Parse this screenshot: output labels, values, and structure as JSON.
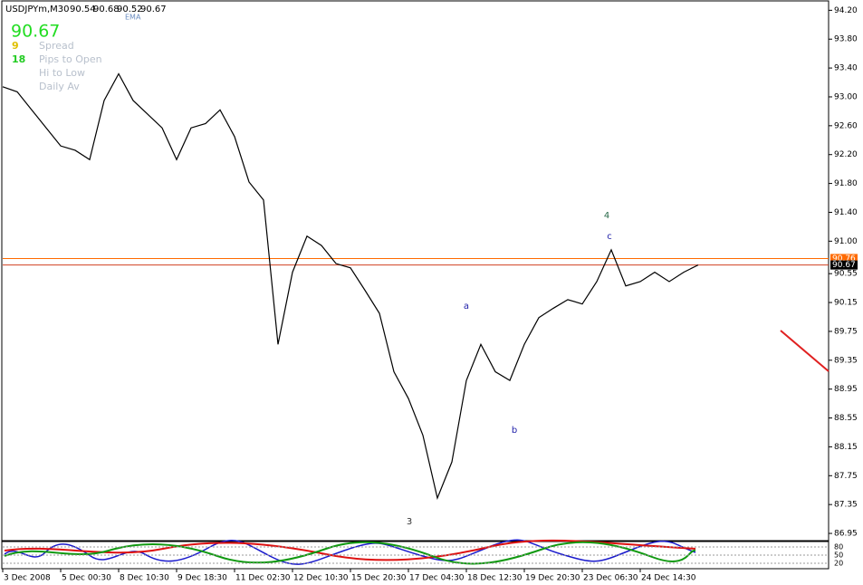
{
  "chart_data": {
    "type": "line",
    "symbol": "USDJPYm,M30",
    "ohlc": [
      90.54,
      90.68,
      90.52,
      90.67
    ],
    "indicator_name": "EMA",
    "info": {
      "price": 90.67,
      "spread": 9,
      "spread_label": "Spread",
      "pips_to_open": 18,
      "pips_to_open_label": "Pips to Open",
      "hi_to_low_label": "Hi to Low",
      "daily_av_label": "Daily Av"
    },
    "categories": [
      "3 Dec 2008",
      null,
      null,
      null,
      "5 Dec 00:30",
      null,
      null,
      null,
      "8 Dec 10:30",
      null,
      null,
      null,
      "9 Dec 18:30",
      null,
      null,
      null,
      "11 Dec 02:30",
      null,
      null,
      null,
      "12 Dec 10:30",
      null,
      null,
      null,
      "15 Dec 20:30",
      null,
      null,
      null,
      "17 Dec 04:30",
      null,
      null,
      null,
      "18 Dec 12:30",
      null,
      null,
      null,
      "19 Dec 20:30",
      null,
      null,
      null,
      "23 Dec 06:30",
      null,
      null,
      null,
      "24 Dec 14:30",
      null,
      null,
      null,
      null
    ],
    "values": [
      93.14,
      93.07,
      92.82,
      92.57,
      92.32,
      92.26,
      92.13,
      92.95,
      93.32,
      92.95,
      92.76,
      92.57,
      92.13,
      92.57,
      92.63,
      92.82,
      92.45,
      91.82,
      91.57,
      89.57,
      90.57,
      91.07,
      90.94,
      90.69,
      90.63,
      90.32,
      90.0,
      89.19,
      88.82,
      88.31,
      87.44,
      87.94,
      89.07,
      89.57,
      89.19,
      89.07,
      89.57,
      89.94,
      90.07,
      90.19,
      90.13,
      90.44,
      90.88,
      90.38,
      90.44,
      90.57,
      90.44,
      90.57,
      90.67
    ],
    "color": "#000000",
    "ylim": [
      86.85,
      94.33
    ],
    "yticks": [
      {
        "value": 94.2,
        "label": "94.20"
      },
      {
        "value": 93.8,
        "label": "93.80"
      },
      {
        "value": 93.4,
        "label": "93.40"
      },
      {
        "value": 93.0,
        "label": "93.00"
      },
      {
        "value": 92.6,
        "label": "92.60"
      },
      {
        "value": 92.2,
        "label": "92.20"
      },
      {
        "value": 91.8,
        "label": "91.80"
      },
      {
        "value": 91.4,
        "label": "91.40"
      },
      {
        "value": 91.0,
        "label": "91.00"
      },
      90.55,
      90.15,
      89.75,
      89.35,
      88.95,
      88.55,
      88.15,
      87.75,
      87.35,
      86.95
    ],
    "levels": [
      90.76,
      90.67
    ],
    "level_colors": [
      "#ff6a00",
      "#d04020"
    ],
    "annotations": [
      "4",
      "c",
      "a",
      "b",
      "3"
    ],
    "sub_ylim": [
      0,
      100
    ],
    "sub_yticks": [
      80,
      50,
      20
    ]
  }
}
